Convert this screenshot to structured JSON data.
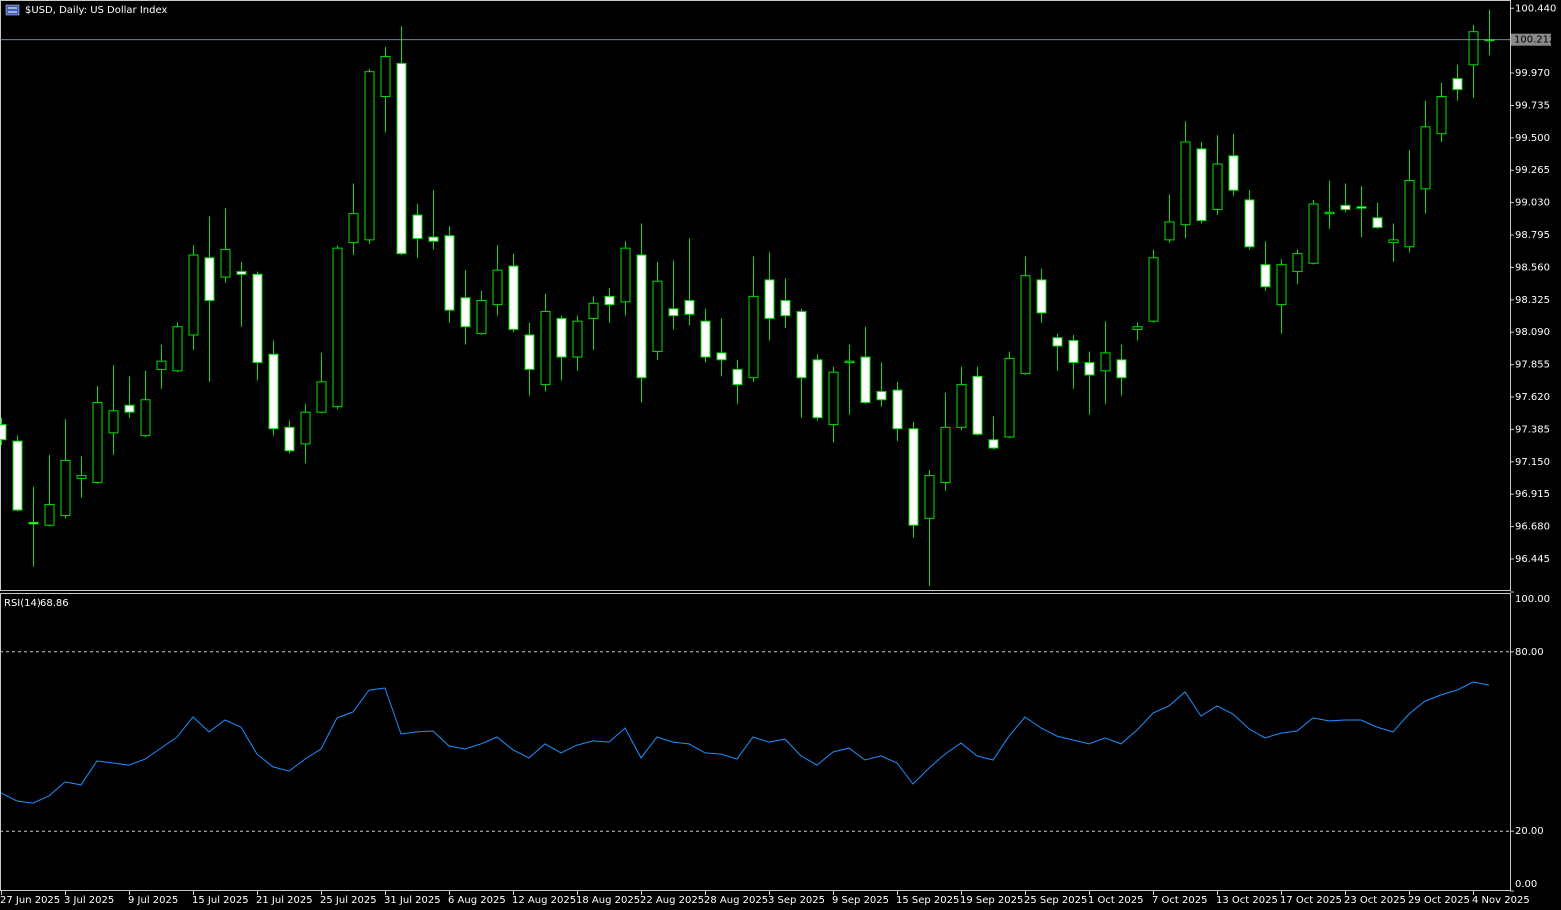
{
  "chart_data": [
    {
      "type": "candlestick",
      "title": "$USD, Daily:  US Dollar Index",
      "categories": [
        "27 Jun 2025",
        null,
        null,
        null,
        "3 Jul 2025",
        null,
        null,
        null,
        "9 Jul 2025",
        null,
        null,
        null,
        "15 Jul 2025",
        null,
        null,
        null,
        "21 Jul 2025",
        null,
        null,
        null,
        "25 Jul 2025",
        null,
        null,
        null,
        "31 Jul 2025",
        null,
        null,
        null,
        "6 Aug 2025",
        null,
        null,
        null,
        "12 Aug 2025",
        null,
        null,
        null,
        "18 Aug 2025",
        null,
        null,
        null,
        "22 Aug 2025",
        null,
        null,
        null,
        "28 Aug 2025",
        null,
        null,
        null,
        "3 Sep 2025",
        null,
        null,
        null,
        "9 Sep 2025",
        null,
        null,
        null,
        "15 Sep 2025",
        null,
        null,
        null,
        "19 Sep 2025",
        null,
        null,
        null,
        "25 Sep 2025",
        null,
        null,
        null,
        "1 Oct 2025",
        null,
        null,
        null,
        "7 Oct 2025",
        null,
        null,
        null,
        "13 Oct 2025",
        null,
        null,
        null,
        "17 Oct 2025",
        null,
        null,
        null,
        "23 Oct 2025",
        null,
        null,
        null,
        "29 Oct 2025",
        null,
        null,
        null,
        "4 Nov 2025",
        null
      ],
      "open": [
        97.42,
        97.3,
        96.71,
        96.69,
        96.76,
        97.03,
        97.0,
        97.36,
        97.56,
        97.34,
        97.82,
        97.81,
        98.07,
        98.63,
        98.49,
        98.53,
        98.51,
        97.93,
        97.4,
        97.28,
        97.51,
        97.55,
        98.74,
        98.76,
        99.8,
        100.04,
        98.94,
        98.78,
        98.79,
        98.34,
        98.08,
        98.29,
        98.57,
        98.07,
        97.71,
        98.19,
        97.91,
        98.19,
        98.35,
        98.31,
        98.65,
        97.95,
        98.26,
        98.32,
        98.17,
        97.94,
        97.82,
        97.76,
        98.47,
        98.32,
        98.24,
        97.89,
        97.42,
        97.87,
        97.91,
        97.66,
        97.67,
        97.39,
        96.74,
        97.0,
        97.4,
        97.77,
        97.31,
        97.33,
        97.79,
        98.47,
        98.05,
        98.03,
        97.87,
        97.81,
        97.89,
        98.11,
        98.17,
        98.76,
        98.87,
        99.42,
        98.98,
        99.37,
        99.05,
        98.58,
        98.29,
        98.53,
        98.59,
        98.95,
        99.01,
        99.0,
        98.92,
        98.74,
        98.71,
        99.13,
        99.53,
        99.93,
        100.03,
        100.21
      ],
      "high": [
        97.47,
        97.34,
        96.97,
        97.2,
        97.46,
        97.19,
        97.7,
        97.85,
        97.77,
        97.81,
        98.0,
        98.16,
        98.72,
        98.93,
        98.99,
        98.6,
        98.53,
        98.03,
        97.45,
        97.57,
        97.94,
        98.72,
        99.17,
        100.0,
        100.16,
        100.31,
        99.02,
        99.12,
        98.86,
        98.54,
        98.39,
        98.72,
        98.66,
        98.16,
        98.37,
        98.21,
        98.21,
        98.35,
        98.41,
        98.75,
        98.88,
        98.6,
        98.61,
        98.77,
        98.26,
        98.19,
        97.89,
        98.64,
        98.67,
        98.48,
        98.26,
        97.93,
        97.84,
        98.0,
        98.13,
        97.87,
        97.73,
        97.44,
        97.09,
        97.65,
        97.84,
        97.84,
        97.48,
        97.95,
        98.64,
        98.55,
        98.08,
        98.07,
        97.95,
        98.17,
        98.0,
        98.16,
        98.69,
        99.09,
        99.62,
        99.47,
        99.52,
        99.53,
        99.12,
        98.75,
        98.62,
        98.69,
        99.05,
        99.19,
        99.17,
        99.15,
        99.03,
        98.88,
        99.41,
        99.77,
        99.9,
        100.03,
        100.32,
        100.43
      ],
      "low": [
        97.27,
        96.79,
        96.39,
        96.68,
        96.74,
        96.89,
        96.99,
        97.2,
        97.47,
        97.33,
        97.68,
        97.8,
        97.96,
        97.73,
        98.45,
        98.13,
        97.74,
        97.34,
        97.21,
        97.14,
        97.5,
        97.53,
        98.65,
        98.73,
        99.54,
        98.65,
        98.63,
        98.69,
        98.16,
        98.0,
        98.07,
        98.21,
        98.09,
        97.63,
        97.66,
        97.74,
        97.81,
        97.96,
        98.16,
        98.21,
        97.58,
        97.89,
        98.11,
        98.14,
        97.87,
        97.77,
        97.57,
        97.73,
        98.03,
        98.12,
        97.47,
        97.45,
        97.29,
        97.49,
        97.57,
        97.55,
        97.3,
        96.6,
        96.25,
        96.94,
        97.38,
        97.34,
        97.24,
        97.32,
        97.78,
        98.16,
        97.81,
        97.68,
        97.49,
        97.57,
        97.63,
        98.03,
        98.16,
        98.74,
        98.77,
        98.88,
        98.94,
        99.08,
        98.69,
        98.39,
        98.08,
        98.44,
        98.58,
        98.84,
        98.96,
        98.78,
        98.84,
        98.6,
        98.67,
        98.95,
        99.47,
        99.77,
        99.79,
        100.1
      ],
      "close": [
        97.31,
        96.8,
        96.7,
        96.84,
        97.16,
        97.05,
        97.58,
        97.52,
        97.51,
        97.6,
        97.88,
        98.13,
        98.65,
        98.32,
        98.69,
        98.51,
        97.87,
        97.39,
        97.23,
        97.51,
        97.73,
        98.7,
        98.95,
        99.98,
        100.09,
        98.66,
        98.77,
        98.75,
        98.25,
        98.13,
        98.32,
        98.54,
        98.11,
        97.82,
        98.24,
        97.91,
        98.17,
        98.3,
        98.29,
        98.7,
        97.76,
        98.46,
        98.21,
        98.22,
        97.91,
        97.89,
        97.71,
        98.35,
        98.19,
        98.21,
        97.76,
        97.47,
        97.8,
        97.88,
        97.58,
        97.6,
        97.39,
        96.69,
        97.05,
        97.4,
        97.71,
        97.35,
        97.25,
        97.9,
        98.5,
        98.23,
        97.99,
        97.87,
        97.78,
        97.94,
        97.76,
        98.13,
        98.63,
        98.89,
        99.47,
        98.9,
        99.31,
        99.12,
        98.71,
        98.42,
        98.58,
        98.66,
        99.02,
        98.96,
        98.98,
        98.99,
        98.85,
        98.76,
        99.19,
        99.58,
        99.8,
        99.85,
        100.27,
        100.212
      ],
      "current_price": {
        "value": 100.212,
        "label": "100.212"
      },
      "color": "#00e000",
      "bear_fill": "#ffffff",
      "bull_fill": "#000000",
      "grid": false,
      "ylim": [
        96.22,
        100.5
      ],
      "yticks": [
        {
          "value": 100.44,
          "label": "100.440"
        },
        {
          "value": 99.97,
          "label": "99.970"
        },
        99.735,
        {
          "value": 99.5,
          "label": "99.500"
        },
        99.265,
        {
          "value": 99.03,
          "label": "99.030"
        },
        98.795,
        {
          "value": 98.56,
          "label": "98.560"
        },
        98.325,
        {
          "value": 98.09,
          "label": "98.090"
        },
        97.855,
        {
          "value": 97.62,
          "label": "97.620"
        },
        97.385,
        {
          "value": 97.15,
          "label": "97.150"
        },
        96.915,
        {
          "value": 96.68,
          "label": "96.680"
        },
        96.445
      ]
    },
    {
      "type": "line",
      "title": "RSI(14)",
      "color": "#1e90ff",
      "values": [
        32.8,
        30.1,
        29.4,
        31.8,
        36.5,
        35.5,
        43.5,
        42.8,
        42.1,
        44.1,
        47.8,
        51.5,
        58.2,
        53.2,
        57.2,
        54.8,
        45.8,
        41.5,
        40.1,
        44.1,
        47.5,
        57.9,
        59.9,
        67.2,
        67.9,
        52.5,
        53.2,
        53.5,
        48.5,
        47.5,
        49.2,
        51.5,
        47.2,
        44.5,
        49.2,
        46.2,
        48.8,
        50.2,
        49.8,
        54.5,
        44.5,
        51.5,
        49.8,
        49.2,
        46.2,
        45.8,
        44.1,
        51.5,
        49.8,
        50.8,
        45.2,
        42.1,
        46.5,
        47.8,
        43.8,
        45.2,
        42.8,
        35.8,
        41.1,
        45.8,
        49.5,
        45.2,
        43.8,
        51.8,
        58.2,
        54.5,
        51.8,
        50.5,
        49.2,
        51.2,
        49.2,
        53.8,
        59.5,
        61.9,
        66.6,
        58.5,
        61.9,
        59.2,
        54.2,
        51.2,
        52.8,
        53.5,
        57.9,
        56.9,
        57.2,
        57.2,
        54.8,
        53.2,
        59.2,
        63.5,
        65.6,
        67.2,
        69.9,
        68.86
      ],
      "ylim": [
        0,
        100
      ],
      "yticks": [
        {
          "value": 100,
          "label": "100.00"
        },
        {
          "value": 80,
          "label": "80.00"
        },
        {
          "value": 20,
          "label": "20.00"
        },
        {
          "value": 0,
          "label": "0.00"
        }
      ]
    }
  ]
}
